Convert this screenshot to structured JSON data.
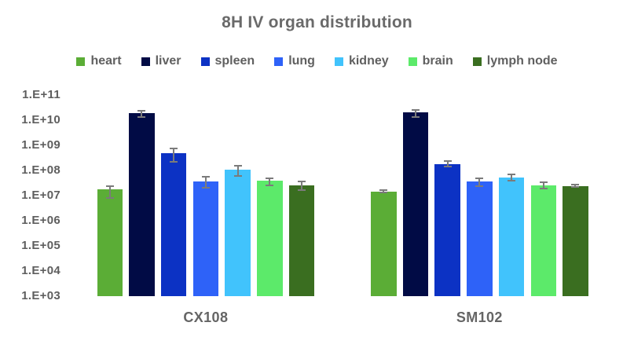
{
  "chart_data": {
    "type": "bar",
    "title": "8H IV organ distribution",
    "xlabel": "",
    "ylabel": "",
    "y_scale": "log10",
    "ylim": [
      1000.0,
      100000000000.0
    ],
    "ytick_labels": [
      "1.E+11",
      "1.E+10",
      "1.E+09",
      "1.E+08",
      "1.E+07",
      "1.E+06",
      "1.E+05",
      "1.E+04",
      "1.E+03"
    ],
    "categories": [
      "CX108",
      "SM102"
    ],
    "series": [
      {
        "name": "heart",
        "color": "#5BAD36",
        "values": [
          18000000.0,
          15000000.0
        ],
        "err_hi": [
          27000000.0,
          19000000.0
        ],
        "err_lo": [
          7900000.0,
          13000000.0
        ]
      },
      {
        "name": "liver",
        "color": "#010B45",
        "values": [
          20000000000.0,
          21000000000.0
        ],
        "err_hi": [
          26000000000.0,
          29000000000.0
        ],
        "err_lo": [
          13000000000.0,
          13000000000.0
        ]
      },
      {
        "name": "spleen",
        "color": "#0C32C4",
        "values": [
          490000000.0,
          190000000.0
        ],
        "err_hi": [
          830000000.0,
          260000000.0
        ],
        "err_lo": [
          220000000.0,
          140000000.0
        ]
      },
      {
        "name": "lung",
        "color": "#2E62F8",
        "values": [
          38000000.0,
          37000000.0
        ],
        "err_hi": [
          62000000.0,
          55000000.0
        ],
        "err_lo": [
          20000000.0,
          23000000.0
        ]
      },
      {
        "name": "kidney",
        "color": "#41C3FC",
        "values": [
          110000000.0,
          56000000.0
        ],
        "err_hi": [
          170000000.0,
          78000000.0
        ],
        "err_lo": [
          59000000.0,
          38000000.0
        ]
      },
      {
        "name": "brain",
        "color": "#5CEA6A",
        "values": [
          41000000.0,
          27000000.0
        ],
        "err_hi": [
          55000000.0,
          37000000.0
        ],
        "err_lo": [
          24000000.0,
          19000000.0
        ]
      },
      {
        "name": "lymph node",
        "color": "#3A6E20",
        "values": [
          27000000.0,
          25000000.0
        ],
        "err_hi": [
          41000000.0,
          30000000.0
        ],
        "err_lo": [
          16000000.0,
          21000000.0
        ]
      }
    ],
    "legend_position": "top",
    "grid": false,
    "axis_lines": false,
    "error_bar_color": "#7B7B7B",
    "text_color": "#636363",
    "background_color": "#FFFFFF"
  }
}
